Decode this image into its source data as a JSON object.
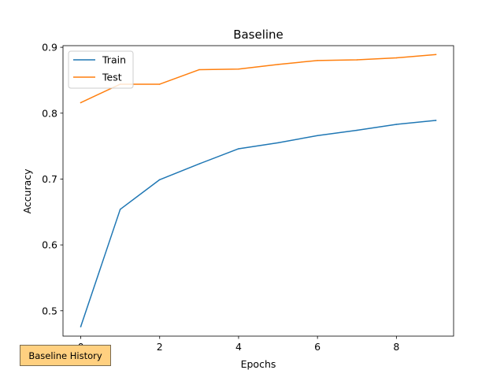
{
  "chart_data": {
    "type": "line",
    "title": "Baseline",
    "xlabel": "Epochs",
    "ylabel": "Accuracy",
    "x": [
      0,
      1,
      2,
      3,
      4,
      5,
      6,
      7,
      8,
      9
    ],
    "xlim": [
      -0.45,
      9.45
    ],
    "ylim": [
      0.4615,
      0.9025
    ],
    "xticks": [
      0,
      2,
      4,
      6,
      8
    ],
    "xtick_labels": [
      "0",
      "2",
      "4",
      "6",
      "8"
    ],
    "yticks": [
      0.5,
      0.6,
      0.7,
      0.8,
      0.9
    ],
    "ytick_labels": [
      "0.5",
      "0.6",
      "0.7",
      "0.8",
      "0.9"
    ],
    "grid": false,
    "legend_position": "top-left",
    "series": [
      {
        "name": "Train",
        "color": "#1f77b4",
        "values": [
          0.476,
          0.654,
          0.699,
          0.723,
          0.746,
          0.755,
          0.766,
          0.774,
          0.783,
          0.789
        ]
      },
      {
        "name": "Test",
        "color": "#ff7f0e",
        "values": [
          0.816,
          0.844,
          0.844,
          0.866,
          0.867,
          0.874,
          0.88,
          0.881,
          0.884,
          0.889
        ]
      }
    ]
  },
  "history_button": {
    "label": "Baseline History",
    "color": "#ffd080"
  }
}
